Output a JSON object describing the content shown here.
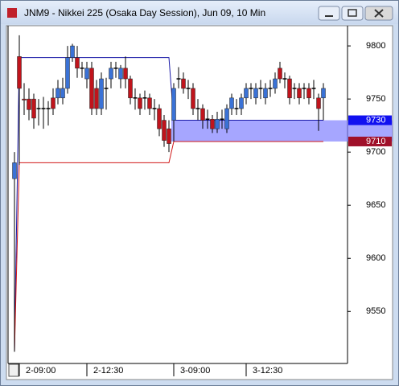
{
  "chart_data": {
    "type": "candlestick",
    "title": "JNM9 - Nikkei 225 (Osaka Day Session), Jun 09, 10 Min",
    "categories": [
      null,
      "2-09:00",
      null,
      null,
      null,
      null,
      null,
      null,
      null,
      null,
      null,
      null,
      null,
      null,
      null,
      "2-12:30",
      null,
      null,
      null,
      null,
      null,
      null,
      null,
      null,
      null,
      null,
      null,
      null,
      null,
      null,
      null,
      null,
      null,
      "3-09:00",
      null,
      null,
      null,
      null,
      null,
      null,
      null,
      null,
      null,
      null,
      null,
      null,
      null,
      null,
      "3-12:30",
      null,
      null,
      null,
      null,
      null,
      null,
      null,
      null,
      null,
      null,
      null,
      null,
      null,
      null,
      null,
      null
    ],
    "open": [
      9675,
      9790,
      9750,
      9750,
      9750,
      9741,
      9741,
      9741,
      9751,
      9751,
      9751,
      9760,
      9789,
      9789,
      9779,
      9769,
      9779,
      9760,
      9741,
      9760,
      9769,
      9779,
      9769,
      9779,
      9769,
      9751,
      9751,
      9751,
      9751,
      9741,
      9741,
      9730,
      9722,
      9730,
      9769,
      9769,
      9760,
      9760,
      9741,
      9741,
      9731,
      9731,
      9722,
      9731,
      9722,
      9741,
      9741,
      9741,
      9751,
      9760,
      9751,
      9760,
      9751,
      9760,
      9760,
      9779,
      9769,
      9769,
      9760,
      9760,
      9760,
      9760,
      9760,
      9751,
      9751
    ],
    "high": [
      9700,
      9810,
      9765,
      9760,
      9755,
      9750,
      9752,
      9748,
      9760,
      9768,
      9770,
      9800,
      9802,
      9800,
      9785,
      9785,
      9785,
      9768,
      9775,
      9770,
      9785,
      9785,
      9782,
      9790,
      9772,
      9760,
      9755,
      9758,
      9755,
      9750,
      9745,
      9735,
      9730,
      9765,
      9780,
      9775,
      9768,
      9765,
      9750,
      9745,
      9740,
      9735,
      9738,
      9740,
      9745,
      9755,
      9750,
      9755,
      9765,
      9765,
      9765,
      9768,
      9765,
      9768,
      9775,
      9785,
      9775,
      9772,
      9765,
      9765,
      9765,
      9765,
      9768,
      9755,
      9765
    ],
    "low": [
      9512,
      9688,
      9735,
      9730,
      9722,
      9725,
      9722,
      9725,
      9735,
      9745,
      9745,
      9755,
      9785,
      9770,
      9770,
      9760,
      9735,
      9735,
      9735,
      9740,
      9760,
      9770,
      9760,
      9760,
      9745,
      9740,
      9735,
      9740,
      9735,
      9730,
      9715,
      9705,
      9700,
      9710,
      9760,
      9755,
      9750,
      9735,
      9730,
      9722,
      9722,
      9718,
      9718,
      9722,
      9718,
      9735,
      9735,
      9735,
      9745,
      9750,
      9745,
      9750,
      9745,
      9752,
      9755,
      9765,
      9760,
      9745,
      9750,
      9745,
      9750,
      9745,
      9750,
      9720,
      9730
    ],
    "close": [
      9690,
      9760,
      9749,
      9740,
      9732,
      9741,
      9741,
      9741,
      9741,
      9760,
      9760,
      9789,
      9800,
      9779,
      9779,
      9779,
      9741,
      9741,
      9769,
      9760,
      9779,
      9779,
      9779,
      9769,
      9751,
      9751,
      9741,
      9751,
      9741,
      9741,
      9722,
      9711,
      9708,
      9760,
      9769,
      9760,
      9760,
      9741,
      9741,
      9730,
      9731,
      9722,
      9731,
      9731,
      9741,
      9751,
      9741,
      9751,
      9760,
      9760,
      9760,
      9760,
      9760,
      9760,
      9769,
      9769,
      9769,
      9751,
      9760,
      9751,
      9760,
      9751,
      9760,
      9741,
      9760
    ],
    "up_color": "#3a72d6",
    "down_color": "#c0141c",
    "doji_color": "#000000",
    "lines": [
      {
        "color": "#1a1aa8",
        "values": [
          9512,
          9789,
          9789,
          9789,
          9789,
          9789,
          9789,
          9789,
          9789,
          9789,
          9789,
          9789,
          9789,
          9789,
          9789,
          9789,
          9789,
          9789,
          9789,
          9789,
          9789,
          9789,
          9789,
          9789,
          9789,
          9789,
          9789,
          9789,
          9789,
          9789,
          9789,
          9789,
          9789,
          9730,
          9730,
          9730,
          9730,
          9730,
          9730,
          9730,
          9730,
          9730,
          9730,
          9730,
          9730,
          9730,
          9730,
          9730,
          9730,
          9730,
          9730,
          9730,
          9730,
          9730,
          9730,
          9730,
          9730,
          9730,
          9730,
          9730,
          9730,
          9730,
          9730,
          9730,
          9730
        ]
      },
      {
        "color": "#d01818",
        "values": [
          9512,
          9690,
          9690,
          9690,
          9690,
          9690,
          9690,
          9690,
          9690,
          9690,
          9690,
          9690,
          9690,
          9690,
          9690,
          9690,
          9690,
          9690,
          9690,
          9690,
          9690,
          9690,
          9690,
          9690,
          9690,
          9690,
          9690,
          9690,
          9690,
          9690,
          9690,
          9690,
          9690,
          9710,
          9710,
          9710,
          9710,
          9710,
          9710,
          9710,
          9710,
          9710,
          9710,
          9710,
          9710,
          9710,
          9710,
          9710,
          9710,
          9710,
          9710,
          9710,
          9710,
          9710,
          9710,
          9710,
          9710,
          9710,
          9710,
          9710,
          9710,
          9710,
          9710,
          9710,
          9710
        ]
      }
    ],
    "levels": [
      {
        "value": 9730,
        "color": "#1010f0"
      },
      {
        "value": 9710,
        "color": "#a0102a"
      }
    ],
    "band_color": "#8080ff",
    "ylim": [
      9501,
      9819
    ],
    "yticks": [
      9550,
      9600,
      9650,
      9700,
      9750,
      9800
    ]
  }
}
